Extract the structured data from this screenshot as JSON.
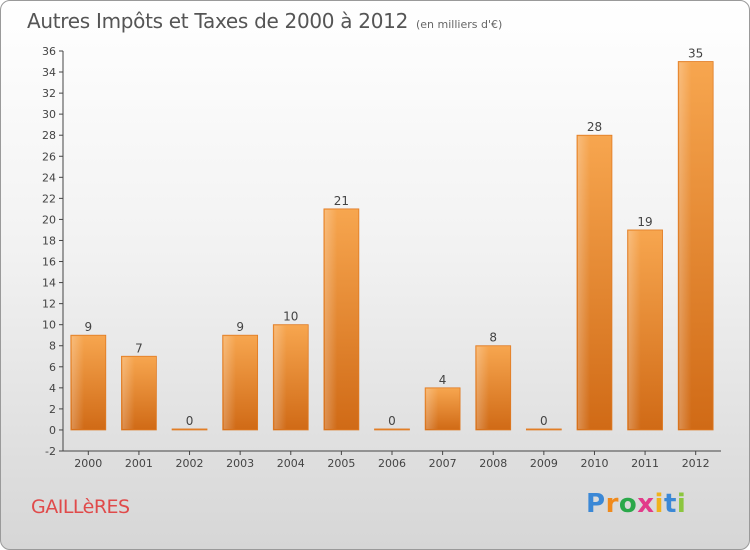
{
  "header": {
    "title": "Autres Impôts et Taxes de 2000 à 2012",
    "subtitle": "(en milliers d'€)"
  },
  "footer": {
    "town": "GAILLèRES",
    "logo_text": "Proxiti"
  },
  "chart_data": {
    "type": "bar",
    "title": "Autres Impôts et Taxes de 2000 à 2012",
    "subtitle": "(en milliers d'€)",
    "xlabel": "",
    "ylabel": "",
    "categories": [
      "2000",
      "2001",
      "2002",
      "2003",
      "2004",
      "2005",
      "2006",
      "2007",
      "2008",
      "2009",
      "2010",
      "2011",
      "2012"
    ],
    "values": [
      9,
      7,
      0,
      9,
      10,
      21,
      0,
      4,
      8,
      0,
      28,
      19,
      35
    ],
    "ylim": [
      -2,
      36
    ],
    "yticks": [
      -2,
      0,
      2,
      4,
      6,
      8,
      10,
      12,
      14,
      16,
      18,
      20,
      22,
      24,
      26,
      28,
      30,
      32,
      34,
      36
    ],
    "grid": false,
    "bar_color": "#f08a2c",
    "data_labels": true
  }
}
